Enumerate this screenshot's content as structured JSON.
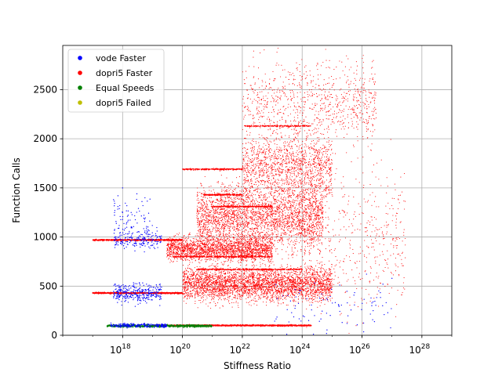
{
  "chart_data": {
    "type": "scatter",
    "title": "",
    "xlabel": "Stiffness Ratio",
    "ylabel": "Function Calls",
    "x_scale": "log10",
    "xlim": [
      1e+16,
      1e+29
    ],
    "ylim": [
      0,
      2950
    ],
    "grid": true,
    "legend_position": "top-left",
    "x_ticks": [
      {
        "exp": "18",
        "value": 1e+18
      },
      {
        "exp": "20",
        "value": 1e+20
      },
      {
        "exp": "22",
        "value": 1e+22
      },
      {
        "exp": "24",
        "value": 1e+24
      },
      {
        "exp": "26",
        "value": 1e+26
      },
      {
        "exp": "28",
        "value": 1e+28
      }
    ],
    "x_tick_base": "10",
    "y_ticks": [
      {
        "label": "0",
        "value": 0
      },
      {
        "label": "500",
        "value": 500
      },
      {
        "label": "1000",
        "value": 1000
      },
      {
        "label": "1500",
        "value": 1500
      },
      {
        "label": "2000",
        "value": 2000
      },
      {
        "label": "2500",
        "value": 2500
      }
    ],
    "series": [
      {
        "name": "vode Faster",
        "color": "#0000ff",
        "clusters": [
          {
            "x_range": [
              4e+17,
              3e+19
            ],
            "y_center": 100,
            "y_spread": 25,
            "count": 220
          },
          {
            "x_range": [
              5e+17,
              2e+19
            ],
            "y_center": 430,
            "y_spread": 120,
            "count": 320
          },
          {
            "x_range": [
              5e+17,
              2e+19
            ],
            "y_center": 970,
            "y_spread": 120,
            "count": 180
          },
          {
            "x_range": [
              5e+17,
              1e+19
            ],
            "y_center": 1150,
            "y_spread": 300,
            "count": 80
          },
          {
            "x_range": [
              1e+23,
              1e+27
            ],
            "y_center": 300,
            "y_spread": 300,
            "count": 90
          }
        ],
        "sample_points": [
          [
            5e+17,
            1380
          ],
          [
            7e+17,
            1420
          ],
          [
            1e+18,
            1500
          ],
          [
            3e+18,
            1440
          ],
          [
            1e+18,
            1250
          ],
          [
            2e+18,
            1100
          ],
          [
            1e+27,
            580
          ],
          [
            5e+26,
            520
          ]
        ]
      },
      {
        "name": "dopri5 Faster",
        "color": "#ff0000",
        "bands": [
          {
            "x_range": [
              1e+17,
              1e+20
            ],
            "y": 970,
            "count": 900
          },
          {
            "x_range": [
              1e+17,
              1e+20
            ],
            "y": 430,
            "count": 900
          },
          {
            "x_range": [
              1e+19,
              2e+24
            ],
            "y": 100,
            "count": 1400
          },
          {
            "x_range": [
              1e+20,
              1e+22
            ],
            "y": 1690,
            "count": 300
          },
          {
            "x_range": [
              5e+20,
              1e+22
            ],
            "y": 1430,
            "count": 300
          },
          {
            "x_range": [
              1e+21,
              1e+23
            ],
            "y": 1310,
            "count": 300
          },
          {
            "x_range": [
              5e+19,
              1e+23
            ],
            "y": 800,
            "count": 400
          },
          {
            "x_range": [
              3e+20,
              1e+24
            ],
            "y": 670,
            "count": 400
          },
          {
            "x_range": [
              1e+22,
              2e+24
            ],
            "y": 2130,
            "count": 200
          }
        ],
        "clouds": [
          {
            "x_range": [
              1e+20,
              1e+25
            ],
            "y_center": 520,
            "y_spread": 180,
            "count": 3500
          },
          {
            "x_range": [
              3e+19,
              1e+23
            ],
            "y_center": 880,
            "y_spread": 130,
            "count": 2000
          },
          {
            "x_range": [
              3e+20,
              5e+24
            ],
            "y_center": 1200,
            "y_spread": 350,
            "count": 3000
          },
          {
            "x_range": [
              1e+22,
              1e+25
            ],
            "y_center": 1700,
            "y_spread": 350,
            "count": 1400
          },
          {
            "x_range": [
              1e+22,
              3e+26
            ],
            "y_center": 2350,
            "y_spread": 450,
            "count": 900
          },
          {
            "x_range": [
              1e+24,
              3e+27
            ],
            "y_center": 1000,
            "y_spread": 800,
            "count": 500
          }
        ]
      },
      {
        "name": "Equal Speeds",
        "color": "#008000",
        "clusters": [
          {
            "x_range": [
              3e+17,
              1e+21
            ],
            "y_center": 95,
            "y_spread": 15,
            "count": 700
          }
        ]
      },
      {
        "name": "dopri5 Failed",
        "color": "#bfbf00",
        "clusters": []
      }
    ]
  }
}
